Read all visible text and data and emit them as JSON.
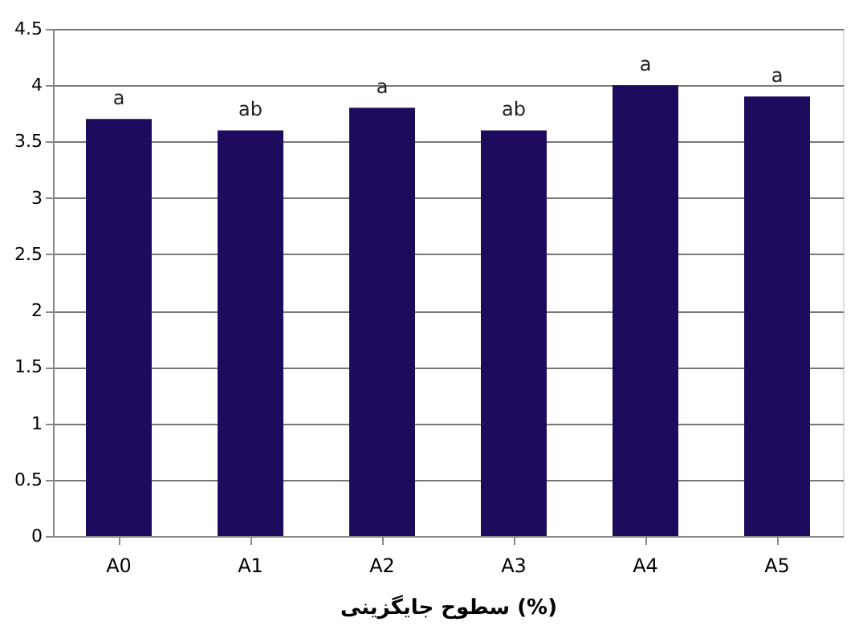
{
  "chart_data": {
    "type": "bar",
    "xlabel": "سطوح جایگزینی (%)",
    "categories": [
      "A0",
      "A1",
      "A2",
      "A3",
      "A4",
      "A5"
    ],
    "values": [
      3.7,
      3.6,
      3.8,
      3.6,
      4.0,
      3.9
    ],
    "value_labels": [
      "a",
      "ab",
      "a",
      "ab",
      "a",
      "a"
    ],
    "color": "#1f0b5e",
    "ylim": [
      0,
      4.5
    ],
    "yticks": [
      0,
      0.5,
      1,
      1.5,
      2,
      2.5,
      3,
      3.5,
      4,
      4.5
    ],
    "grid": "y"
  }
}
